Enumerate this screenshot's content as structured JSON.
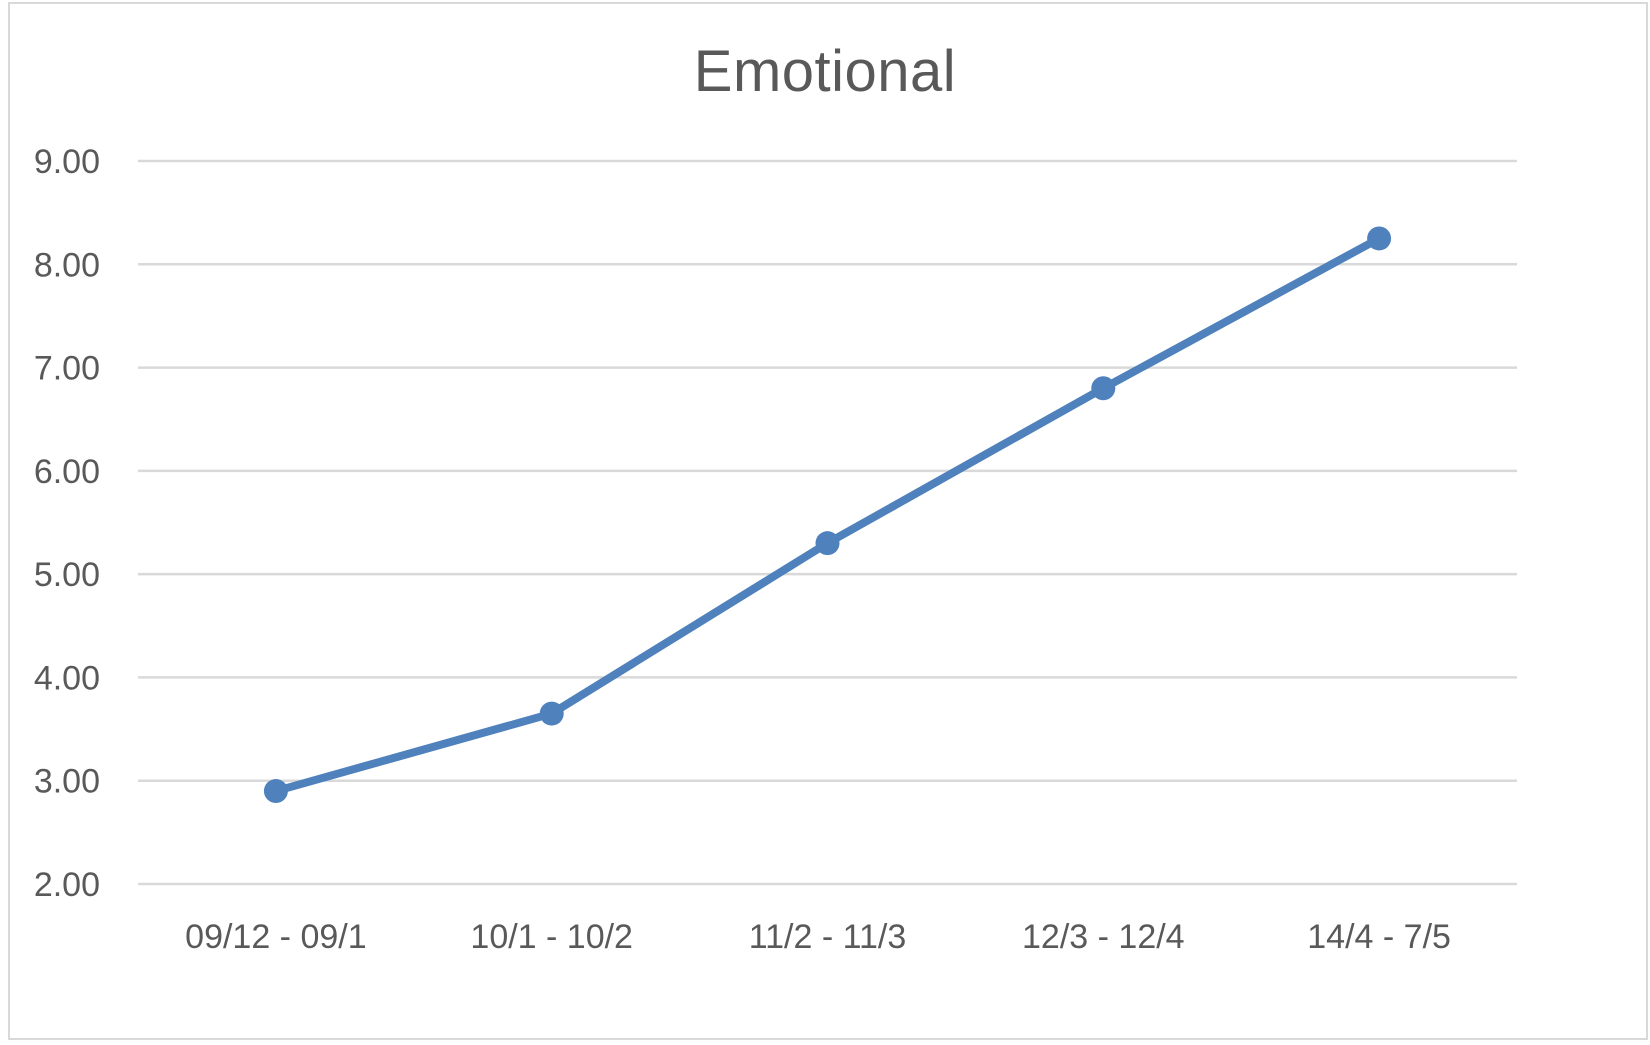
{
  "chart_data": {
    "type": "line",
    "title": "Emotional",
    "xlabel": "",
    "ylabel": "",
    "categories": [
      "09/12 - 09/1",
      "10/1 - 10/2",
      "11/2 - 11/3",
      "12/3 - 12/4",
      "14/4 - 7/5"
    ],
    "series": [
      {
        "values": [
          2.9,
          3.65,
          5.3,
          6.8,
          8.25
        ],
        "color": "#4f81bd"
      }
    ],
    "ylim": [
      2.0,
      9.0
    ],
    "yticks": [
      "2.00",
      "3.00",
      "4.00",
      "5.00",
      "6.00",
      "7.00",
      "8.00",
      "9.00"
    ],
    "grid": true,
    "legend": "none",
    "colors": {
      "gridline": "#d9d9d9",
      "text": "#595959",
      "border": "#d9d9d9"
    }
  }
}
